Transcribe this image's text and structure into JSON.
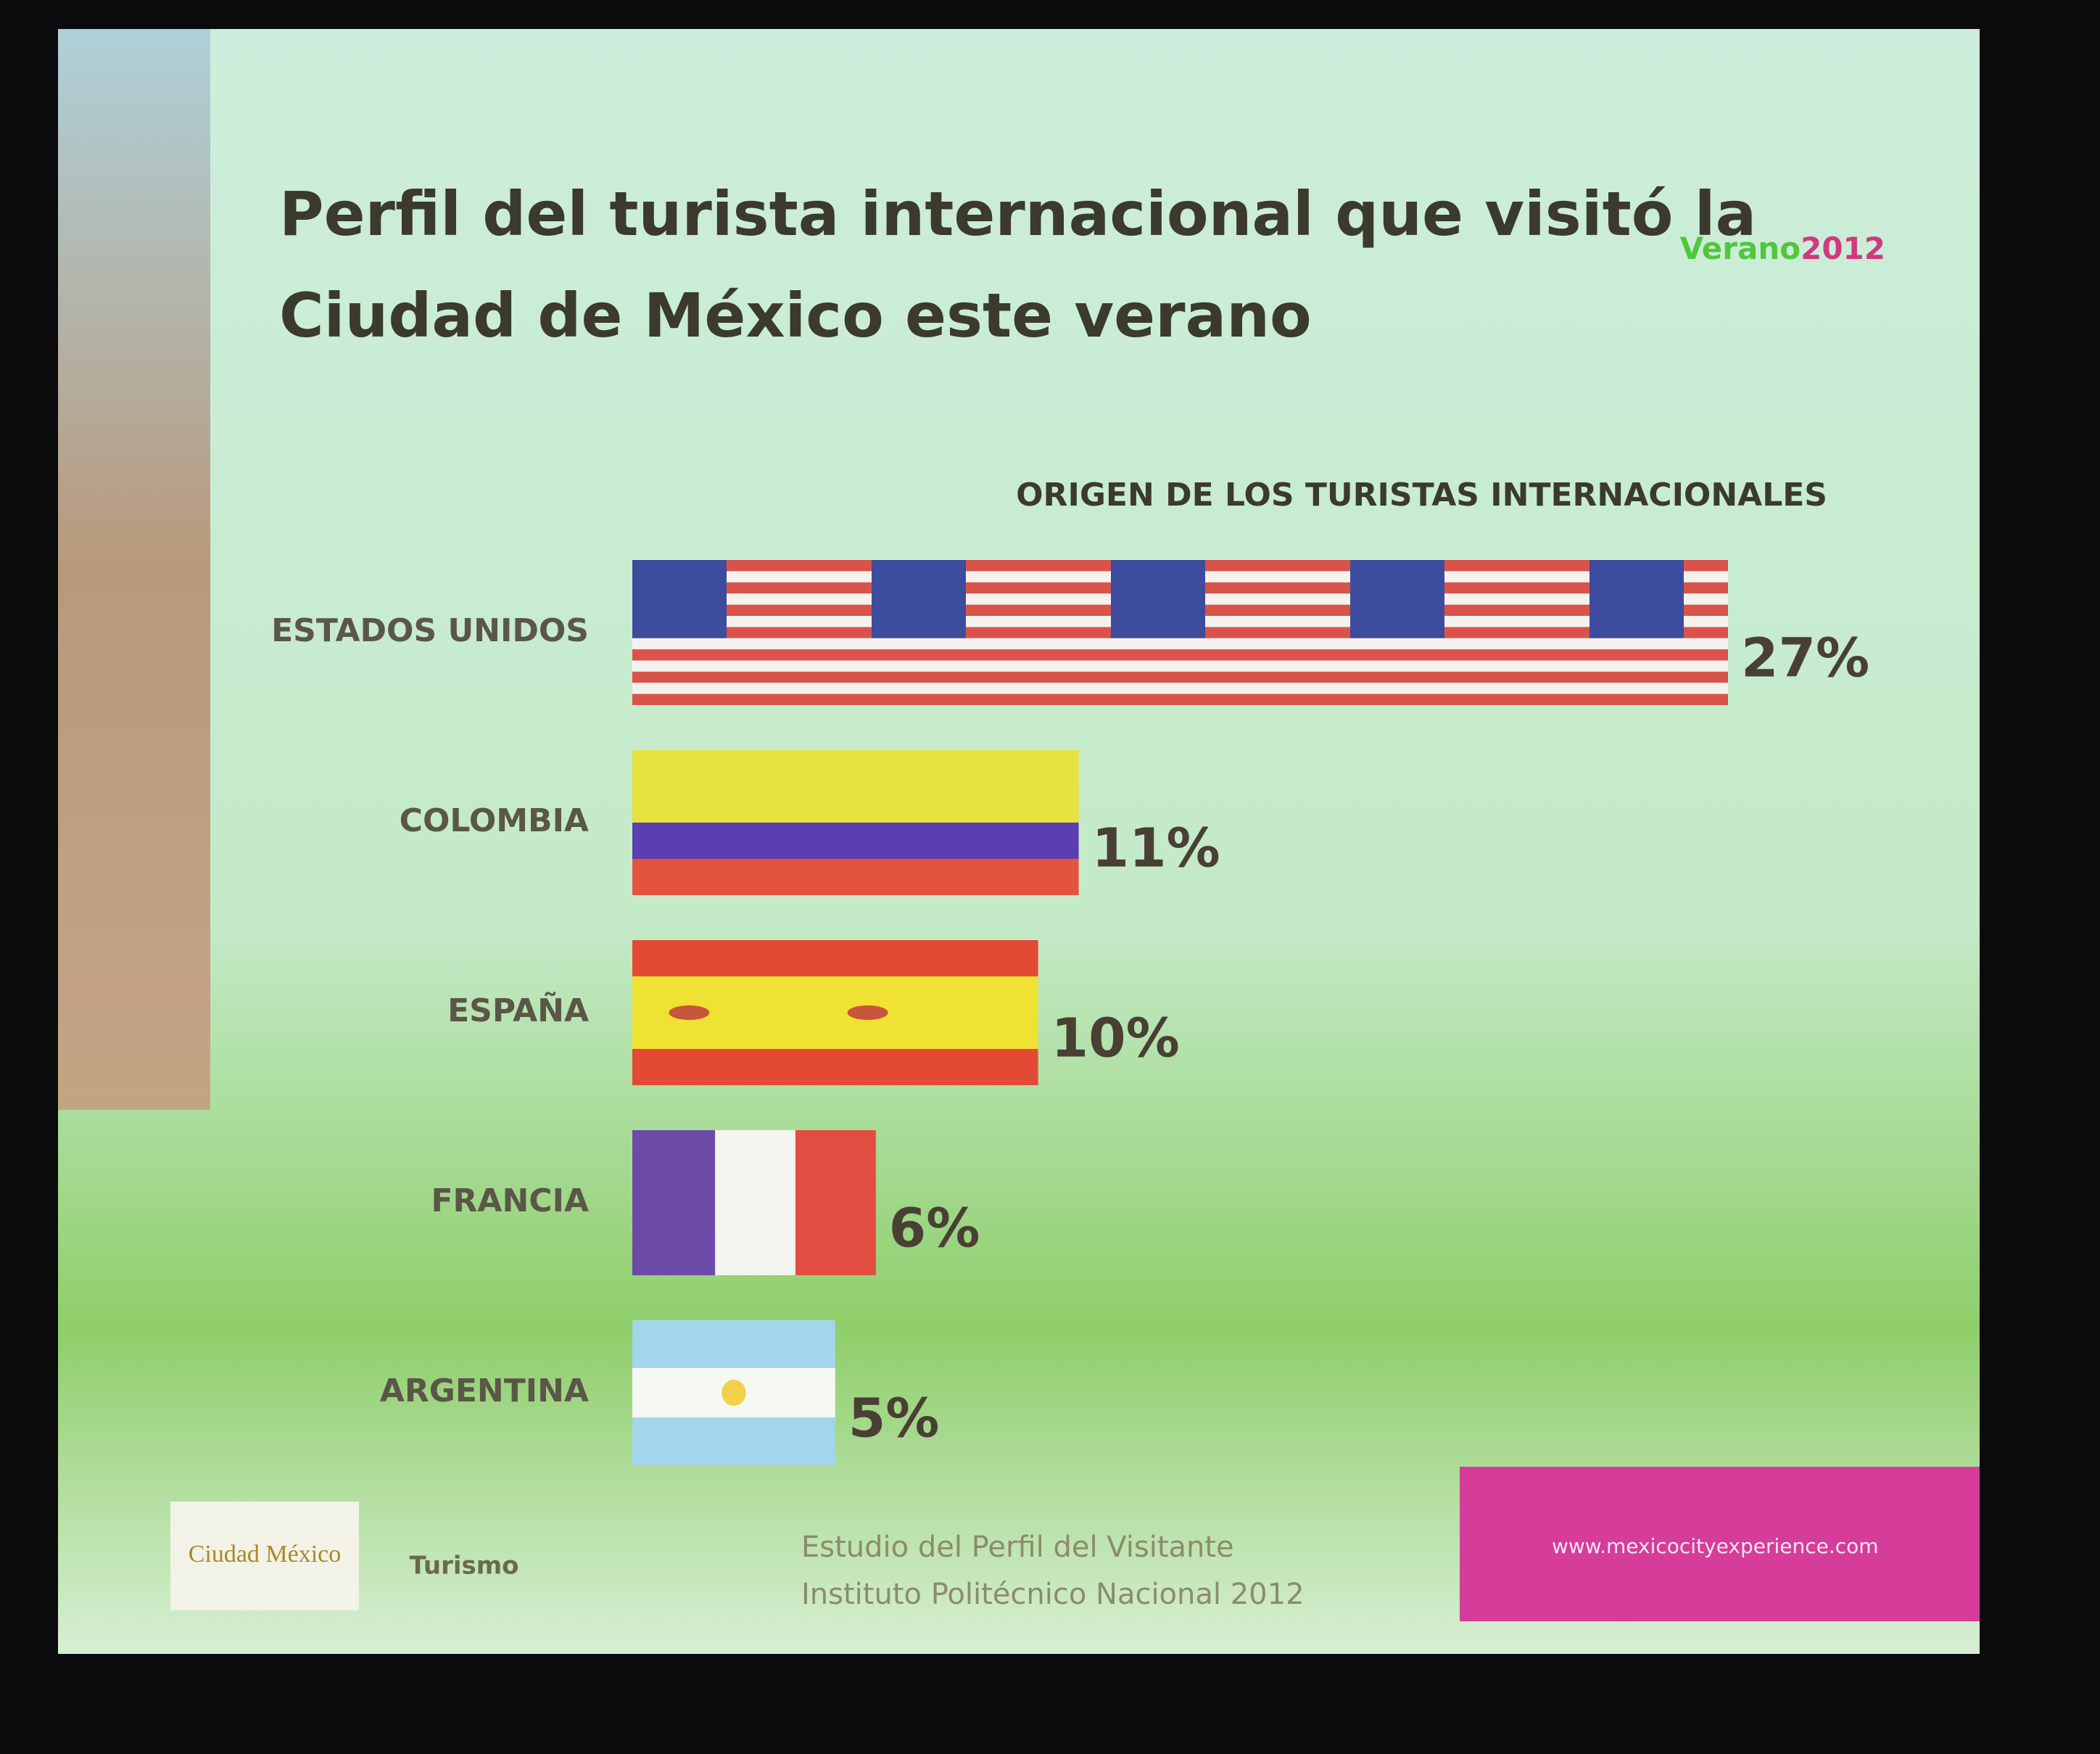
{
  "slide": {
    "badge": {
      "word": "Verano",
      "year": "2012"
    },
    "logos": [
      "Ciudad México",
      "Turismo"
    ],
    "footer": {
      "lines": [
        "Estudio del Perfil del Visitante",
        "Instituto Politécnico Nacional 2012"
      ],
      "url": "www.mexicocityexperience.com"
    }
  },
  "chart_data": {
    "type": "bar",
    "orientation": "horizontal",
    "title": "Perfil del turista internacional que visitó la Ciudad de México este verano",
    "subtitle": "ORIGEN DE LOS TURISTAS INTERNACIONALES",
    "categories": [
      "ESTADOS UNIDOS",
      "COLOMBIA",
      "ESPAÑA",
      "FRANCIA",
      "ARGENTINA"
    ],
    "values": [
      27,
      11,
      10,
      6,
      5
    ],
    "value_labels": [
      "27%",
      "11%",
      "10%",
      "6%",
      "5%"
    ]
  }
}
